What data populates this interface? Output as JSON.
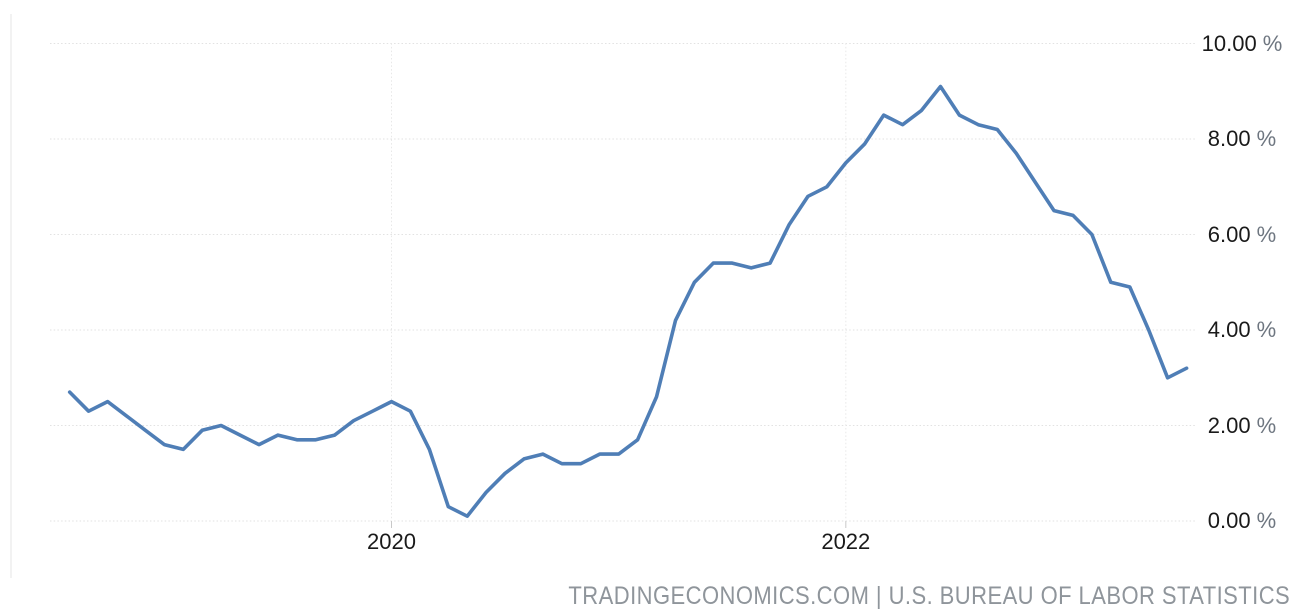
{
  "attribution": "TRADINGECONOMICS.COM | U.S. BUREAU OF LABOR STATISTICS",
  "colors": {
    "line": "#4f7eb6",
    "grid_horizontal": "#e2e2e2",
    "grid_vertical": "#e8e8e8",
    "axis_tick_mark": "#c8c8c8",
    "axis_text": "#1a1a1a",
    "unit_text": "#6e7680",
    "attribution_text": "#8f959b",
    "background": "#ffffff"
  },
  "chart_data": {
    "type": "line",
    "title": "",
    "xlabel": "",
    "ylabel": "",
    "ylim": [
      0,
      10
    ],
    "grid": "dotted",
    "legend": "none",
    "y_axis_position": "right",
    "y_ticks": [
      "10.00",
      "8.00",
      "6.00",
      "4.00",
      "2.00",
      "0.00"
    ],
    "y_unit": "%",
    "x_ticks": [
      "2020",
      "2022"
    ],
    "x": [
      "2018-08",
      "2018-09",
      "2018-10",
      "2018-11",
      "2018-12",
      "2019-01",
      "2019-02",
      "2019-03",
      "2019-04",
      "2019-05",
      "2019-06",
      "2019-07",
      "2019-08",
      "2019-09",
      "2019-10",
      "2019-11",
      "2019-12",
      "2020-01",
      "2020-02",
      "2020-03",
      "2020-04",
      "2020-05",
      "2020-06",
      "2020-07",
      "2020-08",
      "2020-09",
      "2020-10",
      "2020-11",
      "2020-12",
      "2021-01",
      "2021-02",
      "2021-03",
      "2021-04",
      "2021-05",
      "2021-06",
      "2021-07",
      "2021-08",
      "2021-09",
      "2021-10",
      "2021-11",
      "2021-12",
      "2022-01",
      "2022-02",
      "2022-03",
      "2022-04",
      "2022-05",
      "2022-06",
      "2022-07",
      "2022-08",
      "2022-09",
      "2022-10",
      "2022-11",
      "2022-12",
      "2023-01",
      "2023-02",
      "2023-03",
      "2023-04",
      "2023-05",
      "2023-06",
      "2023-07"
    ],
    "values": [
      2.7,
      2.3,
      2.5,
      2.2,
      1.9,
      1.6,
      1.5,
      1.9,
      2.0,
      1.8,
      1.6,
      1.8,
      1.7,
      1.7,
      1.8,
      2.1,
      2.3,
      2.5,
      2.3,
      1.5,
      0.3,
      0.1,
      0.6,
      1.0,
      1.3,
      1.4,
      1.2,
      1.2,
      1.4,
      1.4,
      1.7,
      2.6,
      4.2,
      5.0,
      5.4,
      5.4,
      5.3,
      5.4,
      6.2,
      6.8,
      7.0,
      7.5,
      7.9,
      8.5,
      8.3,
      8.6,
      9.1,
      8.5,
      8.3,
      8.2,
      7.7,
      7.1,
      6.5,
      6.4,
      6.0,
      5.0,
      4.9,
      4.0,
      3.0,
      3.2
    ]
  }
}
